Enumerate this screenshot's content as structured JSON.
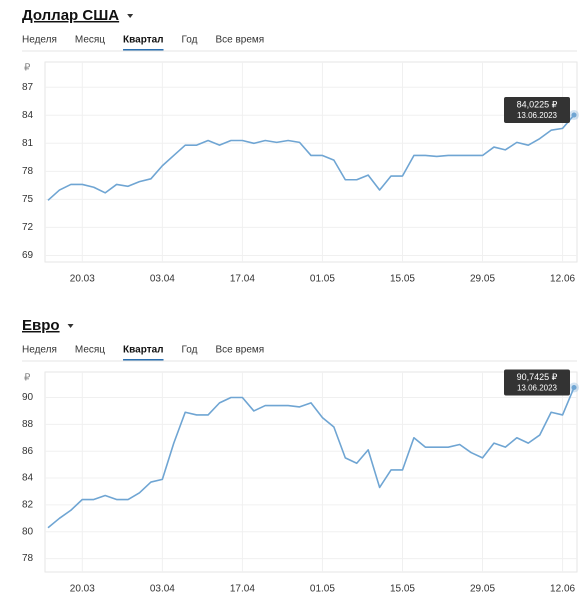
{
  "chart_data": [
    {
      "type": "line",
      "title": "Доллар США",
      "tabs": {
        "items": [
          "Неделя",
          "Месяц",
          "Квартал",
          "Год",
          "Все время"
        ],
        "active": 2
      },
      "y_unit": "₽",
      "categories": [
        null,
        null,
        null,
        "20.03",
        null,
        null,
        null,
        null,
        null,
        null,
        "03.04",
        null,
        null,
        null,
        null,
        null,
        null,
        "17.04",
        null,
        null,
        null,
        null,
        null,
        null,
        "01.05",
        null,
        null,
        null,
        null,
        null,
        null,
        "15.05",
        null,
        null,
        null,
        null,
        null,
        null,
        "29.05",
        null,
        null,
        null,
        null,
        null,
        null,
        "12.06",
        null
      ],
      "values": [
        74.9,
        76,
        76.6,
        76.6,
        76.3,
        75.7,
        76.6,
        76.4,
        76.9,
        77.2,
        78.6,
        79.7,
        80.8,
        80.8,
        81.3,
        80.8,
        81.3,
        81.3,
        81,
        81.3,
        81.1,
        81.3,
        81.1,
        79.7,
        79.7,
        79.2,
        77.1,
        77.1,
        77.6,
        76,
        77.5,
        77.5,
        79.7,
        79.7,
        79.6,
        79.7,
        79.7,
        79.7,
        79.7,
        80.6,
        80.3,
        81.1,
        80.8,
        81.5,
        82.4,
        82.6,
        84.0225
      ],
      "color": "#6fa5d3",
      "ylim": [
        68.3,
        89.7
      ],
      "yticks": [
        69,
        72,
        75,
        78,
        81,
        84,
        87
      ],
      "grid": true,
      "annotation": {
        "text": "84,0225 ₽",
        "date": "13.06.2023"
      }
    },
    {
      "type": "line",
      "title": "Евро",
      "tabs": {
        "items": [
          "Неделя",
          "Месяц",
          "Квартал",
          "Год",
          "Все время"
        ],
        "active": 2
      },
      "y_unit": "₽",
      "categories": [
        null,
        null,
        null,
        "20.03",
        null,
        null,
        null,
        null,
        null,
        null,
        "03.04",
        null,
        null,
        null,
        null,
        null,
        null,
        "17.04",
        null,
        null,
        null,
        null,
        null,
        null,
        "01.05",
        null,
        null,
        null,
        null,
        null,
        null,
        "15.05",
        null,
        null,
        null,
        null,
        null,
        null,
        "29.05",
        null,
        null,
        null,
        null,
        null,
        null,
        "12.06",
        null
      ],
      "values": [
        80.3,
        81,
        81.6,
        82.4,
        82.4,
        82.7,
        82.4,
        82.4,
        82.9,
        83.7,
        83.9,
        86.6,
        88.9,
        88.7,
        88.7,
        89.6,
        90,
        90,
        89,
        89.4,
        89.4,
        89.4,
        89.3,
        89.6,
        88.5,
        87.8,
        85.5,
        85.1,
        86.1,
        83.3,
        84.6,
        84.6,
        87,
        86.3,
        86.3,
        86.3,
        86.5,
        85.9,
        85.5,
        86.6,
        86.3,
        87,
        86.6,
        87.2,
        88.9,
        88.7,
        90.7425
      ],
      "color": "#6fa5d3",
      "ylim": [
        77,
        91.9
      ],
      "yticks": [
        78,
        80,
        82,
        84,
        86,
        88,
        90
      ],
      "grid": true,
      "annotation": {
        "text": "90,7425 ₽",
        "date": "13.06.2023"
      }
    }
  ]
}
